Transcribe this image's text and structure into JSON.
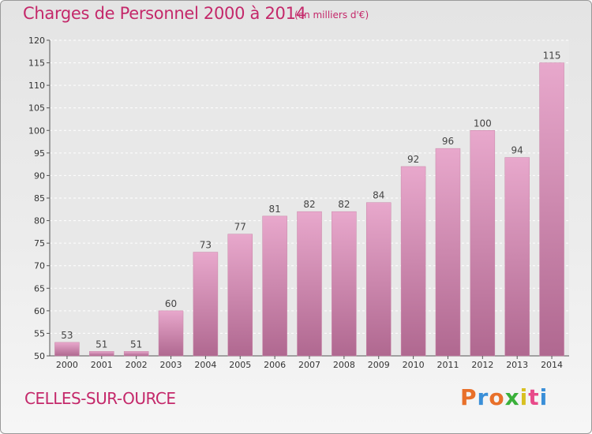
{
  "header": {
    "title": "Charges de Personnel 2000 à 2014",
    "subtitle": "(en milliers d'€)"
  },
  "footer": {
    "town": "CELLES-SUR-OURCE",
    "logo": "Proxiti"
  },
  "colors": {
    "accent": "#c4286a",
    "bar_light": "#e8a8cc",
    "bar_dark": "#b06890",
    "logo": [
      "#e8702a",
      "#3a8fd8",
      "#e8702a",
      "#3ab03a",
      "#d8c020",
      "#e84a8a",
      "#3a8fd8"
    ]
  },
  "chart_data": {
    "type": "bar",
    "title": "Charges de Personnel 2000 à 2014",
    "subtitle": "(en milliers d'€)",
    "categories": [
      "2000",
      "2001",
      "2002",
      "2003",
      "2004",
      "2005",
      "2006",
      "2007",
      "2008",
      "2009",
      "2010",
      "2011",
      "2012",
      "2013",
      "2014"
    ],
    "values": [
      53,
      51,
      51,
      60,
      73,
      77,
      81,
      82,
      82,
      84,
      92,
      96,
      100,
      94,
      115
    ],
    "ylim": [
      50,
      120
    ],
    "yticks": [
      50,
      55,
      60,
      65,
      70,
      75,
      80,
      85,
      90,
      95,
      100,
      105,
      110,
      115,
      120
    ],
    "xlabel": "",
    "ylabel": "",
    "grid": true
  }
}
